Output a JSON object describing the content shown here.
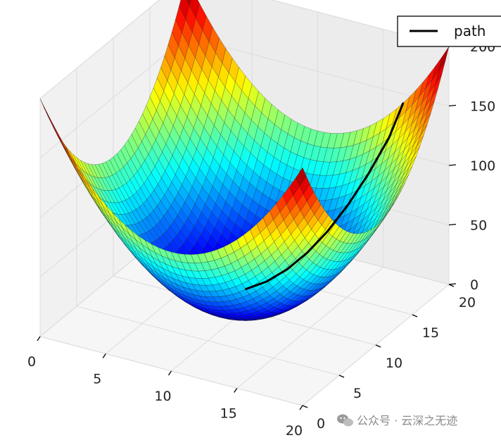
{
  "chart_data": {
    "type": "surface3d",
    "title": "",
    "xlabel": "",
    "ylabel": "",
    "zlabel": "",
    "surface": {
      "function": "(x-10)^2 + (y-10)^2",
      "x_range": [
        0,
        20
      ],
      "y_range": [
        0,
        20
      ],
      "z_min": 0,
      "z_max": 200,
      "colormap": "jet",
      "grid_lines": "black"
    },
    "series": [
      {
        "name": "path",
        "color": "#000000",
        "points": [
          {
            "x": 9.0,
            "y": 12.0,
            "z": 5
          },
          {
            "x": 10.0,
            "y": 13.0,
            "z": 9
          },
          {
            "x": 11.0,
            "y": 14.0,
            "z": 17
          },
          {
            "x": 12.0,
            "y": 15.0,
            "z": 29
          },
          {
            "x": 13.0,
            "y": 16.0,
            "z": 45
          },
          {
            "x": 14.0,
            "y": 17.0,
            "z": 65
          },
          {
            "x": 15.0,
            "y": 18.0,
            "z": 89
          },
          {
            "x": 16.0,
            "y": 19.0,
            "z": 117
          },
          {
            "x": 16.5,
            "y": 20.0,
            "z": 142
          }
        ]
      }
    ],
    "x_ticks": [
      "0",
      "5",
      "10",
      "15",
      "20"
    ],
    "x_tick_values": [
      0,
      5,
      10,
      15,
      20
    ],
    "y_ticks": [
      "0",
      "5",
      "10",
      "15",
      "20"
    ],
    "y_tick_values": [
      0,
      5,
      10,
      15,
      20
    ],
    "z_ticks": [
      "0",
      "50",
      "100",
      "150",
      "200"
    ],
    "z_tick_values": [
      0,
      50,
      100,
      150,
      200
    ],
    "xlim": [
      0,
      20
    ],
    "ylim": [
      0,
      20
    ],
    "zlim": [
      0,
      200
    ],
    "grid": true,
    "legend": {
      "position": "top-right",
      "entries": [
        "path"
      ]
    }
  },
  "watermark": {
    "text": "公众号 · 云深之无迹",
    "icon": "wechat-icon"
  }
}
